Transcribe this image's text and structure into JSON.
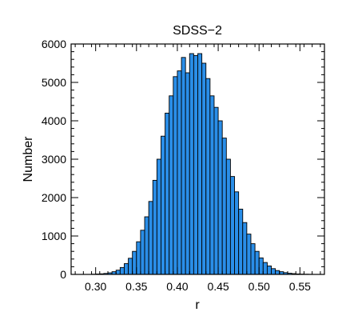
{
  "chart_data": {
    "type": "bar",
    "title": "SDSS−2",
    "xlabel": "r",
    "ylabel": "Number",
    "xlim": [
      0.27,
      0.58
    ],
    "ylim": [
      0,
      6000
    ],
    "x_ticks": [
      0.3,
      0.35,
      0.4,
      0.45,
      0.5,
      0.55
    ],
    "x_tick_labels": [
      "0.30",
      "0.35",
      "0.40",
      "0.45",
      "0.50",
      "0.55"
    ],
    "y_ticks": [
      0,
      1000,
      2000,
      3000,
      4000,
      5000,
      6000
    ],
    "y_tick_labels": [
      "0",
      "1000",
      "2000",
      "3000",
      "4000",
      "5000",
      "6000"
    ],
    "bin_width": 0.005,
    "bin_starts": [
      0.295,
      0.3,
      0.305,
      0.31,
      0.315,
      0.32,
      0.325,
      0.33,
      0.335,
      0.34,
      0.345,
      0.35,
      0.355,
      0.36,
      0.365,
      0.37,
      0.375,
      0.38,
      0.385,
      0.39,
      0.395,
      0.4,
      0.405,
      0.41,
      0.415,
      0.42,
      0.425,
      0.43,
      0.435,
      0.44,
      0.445,
      0.45,
      0.455,
      0.46,
      0.465,
      0.47,
      0.475,
      0.48,
      0.485,
      0.49,
      0.495,
      0.5,
      0.505,
      0.51,
      0.515,
      0.52,
      0.525,
      0.53,
      0.535,
      0.54,
      0.545,
      0.55,
      0.555,
      0.56
    ],
    "values": [
      5,
      10,
      15,
      25,
      40,
      70,
      110,
      180,
      280,
      420,
      600,
      850,
      1150,
      1500,
      1900,
      2450,
      3000,
      3600,
      4200,
      4650,
      5150,
      5300,
      5650,
      5250,
      5750,
      5700,
      5750,
      5500,
      5100,
      4650,
      4350,
      4000,
      3550,
      3000,
      2550,
      2150,
      1700,
      1350,
      1050,
      800,
      600,
      430,
      310,
      220,
      150,
      100,
      70,
      45,
      30,
      20,
      12,
      8,
      5,
      3
    ],
    "bar_color": "#2a8ee8",
    "bar_edge_color": "#000000",
    "grid": false,
    "tick_direction": "in"
  }
}
